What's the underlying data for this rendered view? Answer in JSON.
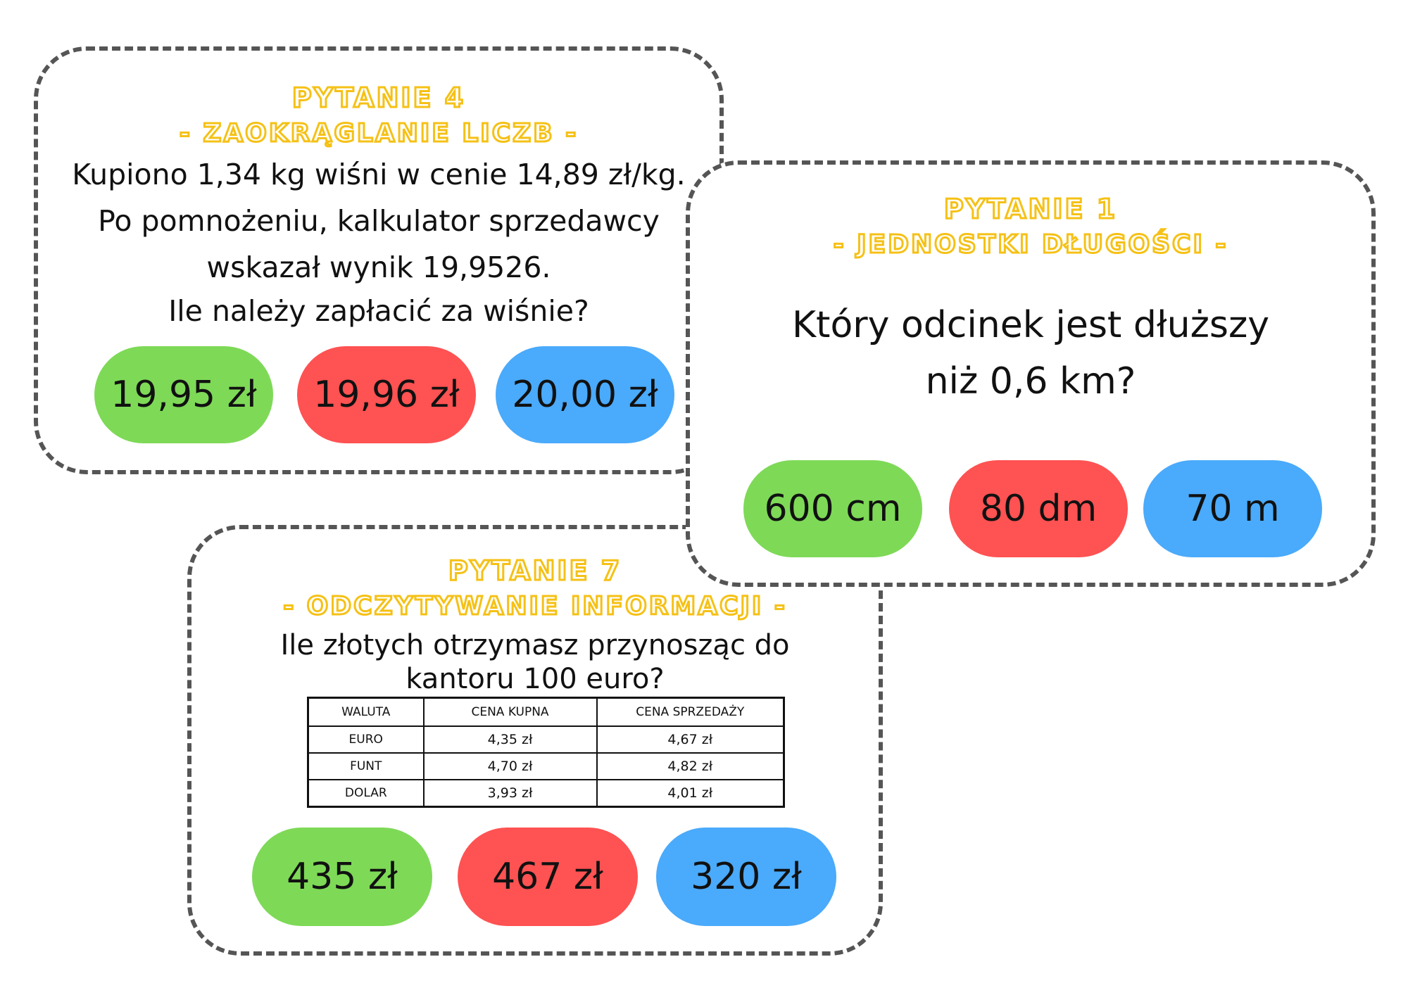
{
  "card_q4": {
    "title_line1": "PYTANIE 4",
    "title_line2": "- ZAOKRĄGLANIE LICZB -",
    "question_lines": [
      "Kupiono 1,34 kg wiśni w cenie 14,89 zł/kg.",
      "Po pomnożeniu, kalkulator sprzedawcy",
      "wskazał wynik 19,9526.",
      "Ile należy zapłacić za wiśnie?"
    ],
    "answers": [
      "19,95 zł",
      "19,96 zł",
      "20,00 zł"
    ]
  },
  "card_q1": {
    "title_line1": "PYTANIE 1",
    "title_line2": "- JEDNOSTKI DŁUGOŚCI -",
    "question_lines": [
      "Który odcinek jest dłuższy",
      "niż 0,6 km?"
    ],
    "answers": [
      "600 cm",
      "80 dm",
      "70 m"
    ]
  },
  "card_q7": {
    "title_line1": "PYTANIE 7",
    "title_line2": "- ODCZYTYWANIE INFORMACJI -",
    "question_lines": [
      "Ile złotych otrzymasz przynosząc do",
      "kantoru 100 euro?"
    ],
    "table": {
      "headers": [
        "WALUTA",
        "CENA KUPNA",
        "CENA SPRZEDAŻY"
      ],
      "rows": [
        [
          "EURO",
          "4,35 zł",
          "4,67 zł"
        ],
        [
          "FUNT",
          "4,70 zł",
          "4,82 zł"
        ],
        [
          "DOLAR",
          "3,93 zł",
          "4,01 zł"
        ]
      ]
    },
    "answers": [
      "435 zł",
      "467 zł",
      "320 zł"
    ]
  },
  "colors": {
    "title": "#f5c116",
    "green": "#7ed957",
    "red": "#ff5252",
    "blue": "#4aaafb",
    "border": "#555555"
  }
}
